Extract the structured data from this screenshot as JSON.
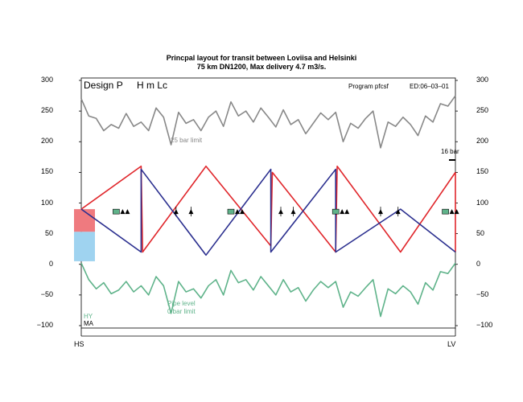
{
  "header": {
    "title_line1": "Princpal layout for transit between Loviisa and Helsinki",
    "title_line2": "75 km DN1200, Max delivery 4.7 m3/s."
  },
  "panel": {
    "design": "Design P",
    "design_mode": "H  m Lc",
    "program": "Program pfcsf",
    "edition": "ED:06–03–01"
  },
  "annotations": {
    "limit_25": "25 bar limit",
    "bar_16": "16 bar",
    "pipe_level": "Pipe level",
    "limit_0": "0 bar limit",
    "hy": "HY",
    "ma": "MA"
  },
  "axis": {
    "ticks": [
      "300",
      "250",
      "200",
      "150",
      "100",
      "50",
      "0",
      "−50",
      "−100"
    ],
    "start_label": "HS",
    "end_label": "LV"
  },
  "chart_data": {
    "type": "line",
    "ylim": [
      -100,
      300
    ],
    "xlim": [
      0,
      75
    ],
    "series": [
      {
        "color": "#888888",
        "x": [
          0,
          1.5,
          3,
          4.5,
          6,
          7.5,
          9,
          10.5,
          12,
          13.5,
          15,
          16.5,
          18,
          19.5,
          21,
          22.5,
          24,
          25.5,
          27,
          28.5,
          30,
          31.5,
          33,
          34.5,
          36,
          37.5,
          39,
          40.5,
          42,
          43.5,
          45,
          46.5,
          48,
          49.5,
          51,
          52.5,
          54,
          55.5,
          57,
          58.5,
          60,
          61.5,
          63,
          64.5,
          66,
          67.5,
          69,
          70.5,
          72,
          73.5,
          75
        ],
        "values": [
          270,
          242,
          238,
          218,
          228,
          222,
          246,
          225,
          232,
          218,
          255,
          240,
          195,
          248,
          230,
          236,
          218,
          240,
          250,
          225,
          265,
          242,
          250,
          232,
          255,
          240,
          224,
          252,
          228,
          236,
          213,
          230,
          247,
          236,
          248,
          200,
          230,
          222,
          238,
          250,
          190,
          232,
          225,
          240,
          228,
          210,
          242,
          232,
          262,
          258,
          275
        ]
      },
      {
        "color": "#5fb38a",
        "x": [
          0,
          1.5,
          3,
          4.5,
          6,
          7.5,
          9,
          10.5,
          12,
          13.5,
          15,
          16.5,
          18,
          19.5,
          21,
          22.5,
          24,
          25.5,
          27,
          28.5,
          30,
          31.5,
          33,
          34.5,
          36,
          37.5,
          39,
          40.5,
          42,
          43.5,
          45,
          46.5,
          48,
          49.5,
          51,
          52.5,
          54,
          55.5,
          57,
          58.5,
          60,
          61.5,
          63,
          64.5,
          66,
          67.5,
          69,
          70.5,
          72,
          73.5,
          75
        ],
        "values": [
          2,
          -25,
          -40,
          -30,
          -48,
          -42,
          -28,
          -45,
          -35,
          -50,
          -20,
          -35,
          -80,
          -28,
          -45,
          -40,
          -55,
          -35,
          -25,
          -50,
          -10,
          -30,
          -25,
          -42,
          -20,
          -35,
          -50,
          -25,
          -45,
          -38,
          -60,
          -42,
          -28,
          -38,
          -28,
          -70,
          -45,
          -52,
          -38,
          -25,
          -85,
          -40,
          -48,
          -35,
          -45,
          -65,
          -30,
          -42,
          -12,
          -15,
          2
        ]
      },
      {
        "color": "#e0262b",
        "x": [
          0,
          12,
          12.3,
          25,
          38,
          38.3,
          51,
          51.3,
          64,
          75
        ],
        "values": [
          90,
          160,
          20,
          160,
          30,
          150,
          20,
          160,
          20,
          150
        ]
      },
      {
        "color": "#e0262b",
        "x": [
          75,
          75
        ],
        "values": [
          150,
          20
        ]
      },
      {
        "color": "#2b2f8f",
        "x": [
          0,
          12,
          12,
          25,
          38,
          38,
          51,
          51,
          64,
          75
        ],
        "values": [
          90,
          20,
          155,
          15,
          155,
          20,
          155,
          20,
          90,
          20
        ]
      }
    ]
  }
}
